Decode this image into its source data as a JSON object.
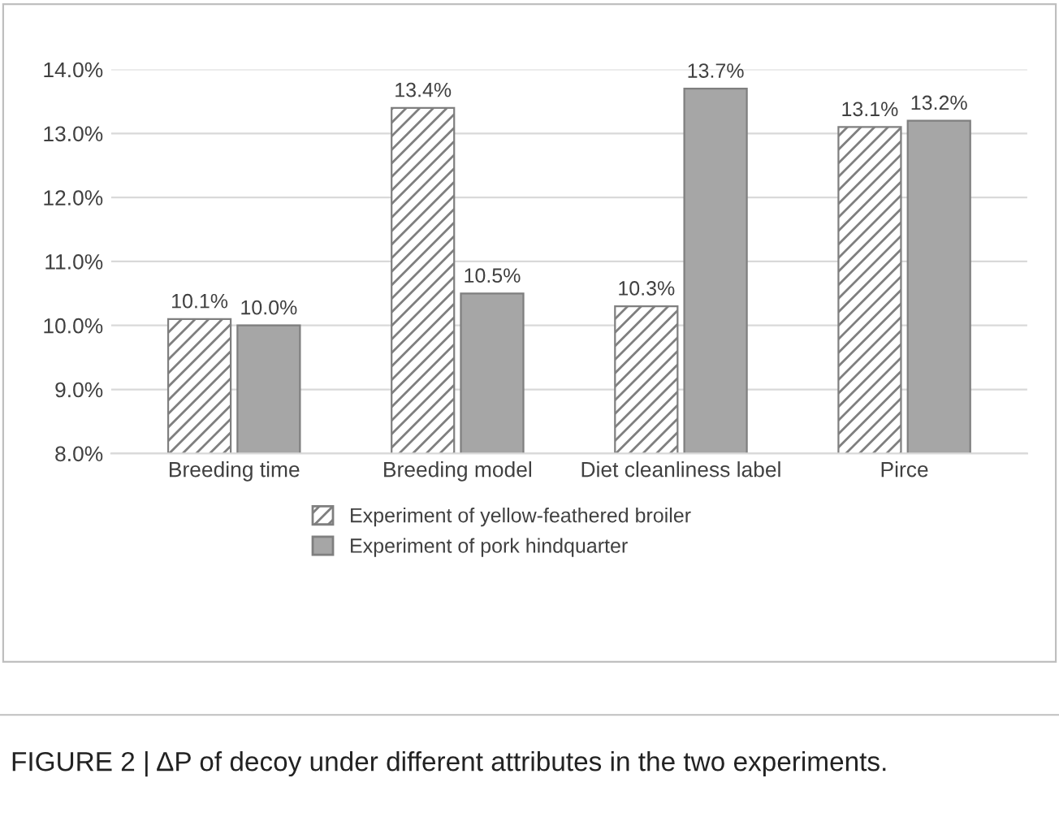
{
  "chart_data": {
    "type": "bar",
    "categories": [
      "Breeding time",
      "Breeding model",
      "Diet cleanliness label",
      "Pirce"
    ],
    "series": [
      {
        "name": "Experiment of yellow-feathered broiler",
        "color": "#7f7f7f",
        "values": [
          10.1,
          13.4,
          10.3,
          13.1
        ],
        "value_labels": [
          "10.1%",
          "13.4%",
          "10.3%",
          "13.1%"
        ]
      },
      {
        "name": "Experiment of pork hindquarter",
        "color": "#a6a6a6",
        "values": [
          10.0,
          10.5,
          13.7,
          13.2
        ],
        "value_labels": [
          "10.0%",
          "10.5%",
          "13.7%",
          "13.2%"
        ]
      }
    ],
    "ylim": [
      8,
      14
    ],
    "yticks": [
      {
        "value": 8,
        "label": "8.0%"
      },
      {
        "value": 9,
        "label": "9.0%"
      },
      {
        "value": 10,
        "label": "10.0%"
      },
      {
        "value": 11,
        "label": "11.0%"
      },
      {
        "value": 12,
        "label": "12.0%"
      },
      {
        "value": 13,
        "label": "13.0%"
      },
      {
        "value": 14,
        "label": "14.0%"
      }
    ],
    "grid": "y",
    "legend": "bottom",
    "annotations": [
      "FIGURE 2 | ΔP of decoy under different attributes in the two experiments."
    ]
  }
}
